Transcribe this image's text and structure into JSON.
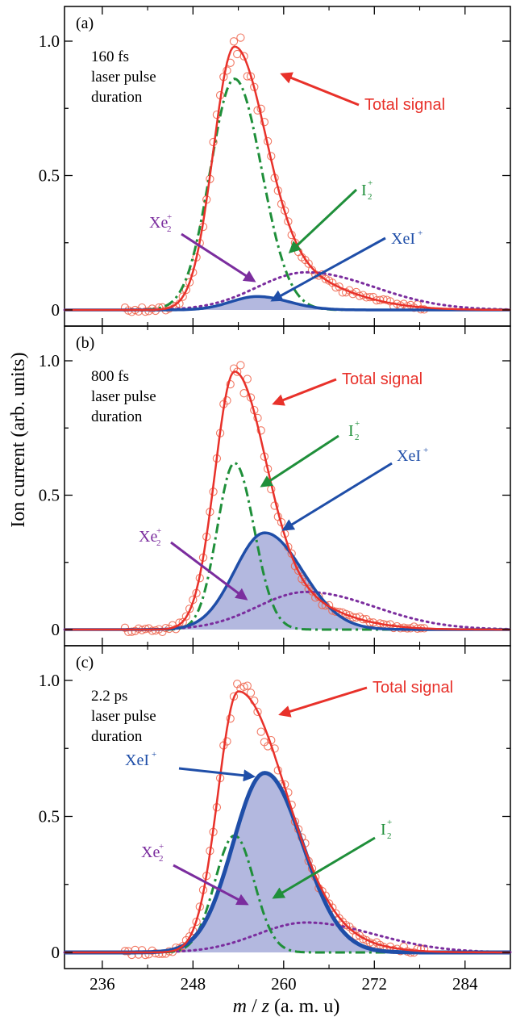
{
  "xlabel": "m / z (a. m. u)",
  "ylabel": "Ion current (arb. units)",
  "colors": {
    "total": "#e8312a",
    "i2": "#1f8f3a",
    "xei": "#1f4ea8",
    "xe2": "#7b2d9e",
    "fill": "#9aa0d4",
    "marker": "#ef6048"
  },
  "chart_data": [
    {
      "type": "line",
      "panel": "(a)",
      "condition": [
        "160 fs",
        "laser pulse",
        "duration"
      ],
      "xlim": [
        231,
        290
      ],
      "ylim": [
        -0.05,
        1.1
      ],
      "xticks": [
        236,
        248,
        260,
        272,
        284
      ],
      "yticks": [
        0,
        0.5,
        1.0
      ],
      "ytick_labels": [
        "0",
        "0.5",
        "1.0"
      ],
      "total": {
        "label": "Total signal",
        "peak": 0.98,
        "center": 253.5
      },
      "i2": {
        "label": "I",
        "peak": 0.86,
        "center": 253.5
      },
      "xei": {
        "label": "XeI",
        "peak": 0.05,
        "center": 256.5
      },
      "xe2": {
        "label": "Xe",
        "peak": 0.14,
        "center": 263
      }
    },
    {
      "type": "line",
      "panel": "(b)",
      "condition": [
        "800 fs",
        "laser pulse",
        "duration"
      ],
      "xlim": [
        231,
        290
      ],
      "ylim": [
        -0.05,
        1.1
      ],
      "xticks": [
        236,
        248,
        260,
        272,
        284
      ],
      "yticks": [
        0,
        0.5,
        1.0
      ],
      "ytick_labels": [
        "0",
        "0.5",
        "1.0"
      ],
      "total": {
        "label": "Total signal",
        "peak": 0.96,
        "center": 253.5
      },
      "i2": {
        "label": "I",
        "peak": 0.62,
        "center": 253.5
      },
      "xei": {
        "label": "XeI",
        "peak": 0.36,
        "center": 257.5
      },
      "xe2": {
        "label": "Xe",
        "peak": 0.14,
        "center": 263
      }
    },
    {
      "type": "line",
      "panel": "(c)",
      "condition": [
        "2.2 ps",
        "laser pulse",
        "duration"
      ],
      "xlim": [
        231,
        290
      ],
      "ylim": [
        -0.05,
        1.1
      ],
      "xticks": [
        236,
        248,
        260,
        272,
        284
      ],
      "yticks": [
        0,
        0.5,
        1.0
      ],
      "ytick_labels": [
        "0",
        "0.5",
        "1.0"
      ],
      "total": {
        "label": "Total signal",
        "peak": 0.96,
        "center": 254
      },
      "i2": {
        "label": "I",
        "peak": 0.43,
        "center": 253.5
      },
      "xei": {
        "label": "XeI",
        "peak": 0.66,
        "center": 257.5
      },
      "xe2": {
        "label": "Xe",
        "peak": 0.11,
        "center": 263
      }
    }
  ]
}
